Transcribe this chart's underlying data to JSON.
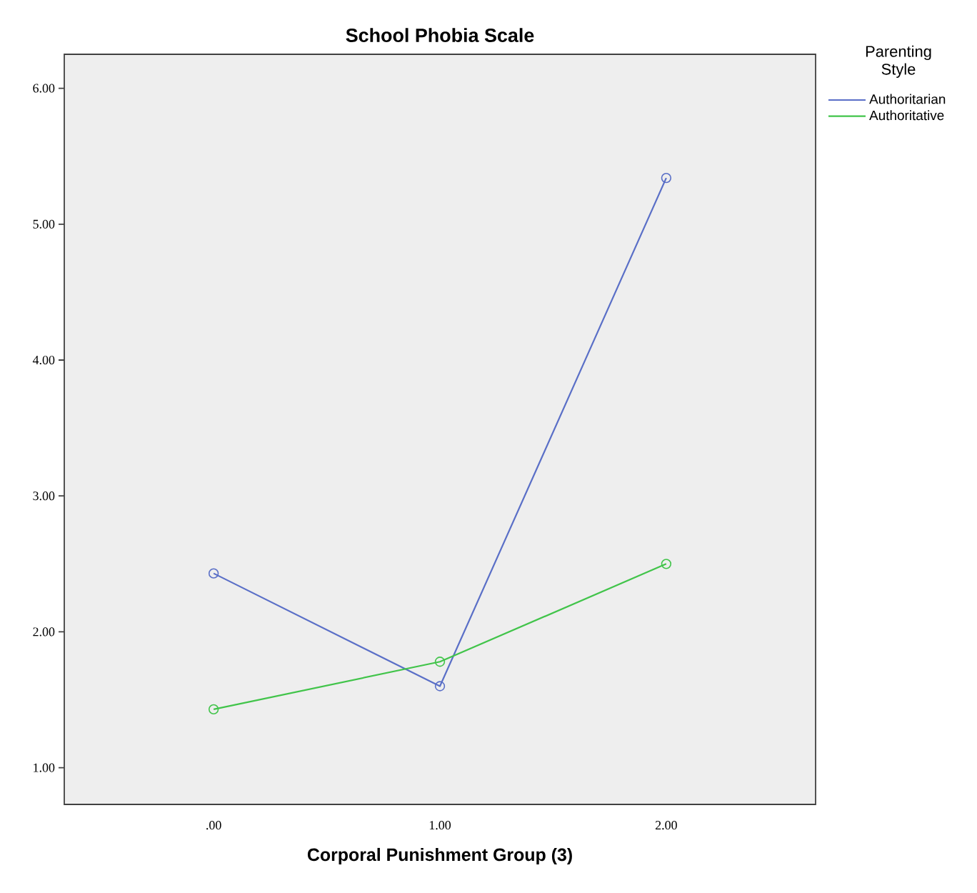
{
  "chart_data": {
    "type": "line",
    "title": "School Phobia Scale",
    "xlabel": "Corporal Punishment Group (3)",
    "legend_title": "Parenting Style",
    "x": [
      0,
      1,
      2
    ],
    "series": [
      {
        "name": "Authoritarian",
        "color": "#5a6fc7",
        "values": [
          2.43,
          1.6,
          5.34
        ]
      },
      {
        "name": "Authoritative",
        "color": "#41c44a",
        "values": [
          1.43,
          1.78,
          2.5
        ]
      }
    ],
    "xlim": [
      -0.66,
      2.66
    ],
    "ylim": [
      0.73,
      6.25
    ],
    "xticks": [
      {
        "value": 0,
        "label": ".00"
      },
      {
        "value": 1,
        "label": "1.00"
      },
      {
        "value": 2,
        "label": "2.00"
      }
    ],
    "yticks": [
      {
        "value": 1,
        "label": "1.00"
      },
      {
        "value": 2,
        "label": "2.00"
      },
      {
        "value": 3,
        "label": "3.00"
      },
      {
        "value": 4,
        "label": "4.00"
      },
      {
        "value": 5,
        "label": "5.00"
      },
      {
        "value": 6,
        "label": "6.00"
      }
    ],
    "grid": false,
    "legend": "top right",
    "marker": "circle",
    "line_style": "solid"
  }
}
